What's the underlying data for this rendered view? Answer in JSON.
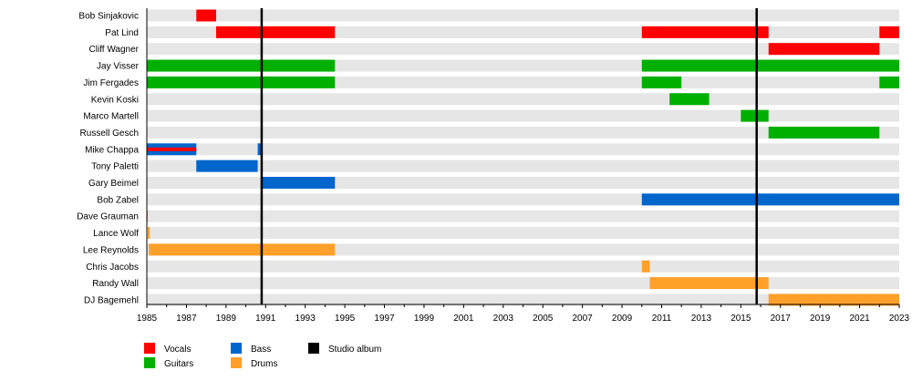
{
  "chart_data": {
    "type": "timeline",
    "xlim": [
      1985,
      2023
    ],
    "xticks": [
      "1985",
      "1987",
      "1989",
      "1991",
      "1993",
      "1995",
      "1997",
      "1999",
      "2001",
      "2003",
      "2005",
      "2007",
      "2009",
      "2011",
      "2013",
      "2015",
      "2017",
      "2019",
      "2021",
      "2023"
    ],
    "roles": {
      "vocals": {
        "label": "Vocals",
        "color": "#ff0000"
      },
      "guitars": {
        "label": "Guitars",
        "color": "#00b000"
      },
      "bass": {
        "label": "Bass",
        "color": "#0066cc"
      },
      "drums": {
        "label": "Drums",
        "color": "#ffa02a"
      },
      "album": {
        "label": "Studio album",
        "color": "#000000"
      }
    },
    "members": [
      {
        "name": "Bob Sinjakovic",
        "bars": [
          {
            "role": "vocals",
            "start": 1987.5,
            "end": 1988.5
          }
        ]
      },
      {
        "name": "Pat Lind",
        "bars": [
          {
            "role": "vocals",
            "start": 1988.5,
            "end": 1994.5
          },
          {
            "role": "vocals",
            "start": 2010.0,
            "end": 2016.4
          },
          {
            "role": "vocals",
            "start": 2022.0,
            "end": 2023
          }
        ]
      },
      {
        "name": "Cliff Wagner",
        "bars": [
          {
            "role": "vocals",
            "start": 2016.4,
            "end": 2022.0
          }
        ]
      },
      {
        "name": "Jay Visser",
        "bars": [
          {
            "role": "guitars",
            "start": 1985,
            "end": 1994.5
          },
          {
            "role": "guitars",
            "start": 2010.0,
            "end": 2023
          }
        ]
      },
      {
        "name": "Jim Fergades",
        "bars": [
          {
            "role": "guitars",
            "start": 1985,
            "end": 1994.5
          },
          {
            "role": "guitars",
            "start": 2010.0,
            "end": 2012.0
          },
          {
            "role": "guitars",
            "start": 2022.0,
            "end": 2023
          }
        ]
      },
      {
        "name": "Kevin Koski",
        "bars": [
          {
            "role": "guitars",
            "start": 2011.4,
            "end": 2013.4
          }
        ]
      },
      {
        "name": "Marco Martell",
        "bars": [
          {
            "role": "guitars",
            "start": 2015.0,
            "end": 2016.4
          }
        ]
      },
      {
        "name": "Russell Gesch",
        "bars": [
          {
            "role": "guitars",
            "start": 2016.4,
            "end": 2022.0
          }
        ]
      },
      {
        "name": "Mike Chappa",
        "bars": [
          {
            "role": "bass",
            "start": 1985,
            "end": 1987.5,
            "stripe": "vocals"
          },
          {
            "role": "bass",
            "start": 1990.6,
            "end": 1990.8
          }
        ]
      },
      {
        "name": "Tony Paletti",
        "bars": [
          {
            "role": "bass",
            "start": 1987.5,
            "end": 1990.6
          }
        ]
      },
      {
        "name": "Gary Beimel",
        "bars": [
          {
            "role": "bass",
            "start": 1990.75,
            "end": 1994.5
          }
        ]
      },
      {
        "name": "Bob Zabel",
        "bars": [
          {
            "role": "bass",
            "start": 2010.0,
            "end": 2023
          }
        ]
      },
      {
        "name": "Dave Grauman",
        "bars": [
          {
            "role": "drums",
            "start": 1985,
            "end": 1985.05
          }
        ]
      },
      {
        "name": "Lance Wolf",
        "bars": [
          {
            "role": "drums",
            "start": 1985.05,
            "end": 1985.15
          }
        ]
      },
      {
        "name": "Lee Reynolds",
        "bars": [
          {
            "role": "drums",
            "start": 1985.1,
            "end": 1994.5
          }
        ]
      },
      {
        "name": "Chris Jacobs",
        "bars": [
          {
            "role": "drums",
            "start": 2010.0,
            "end": 2010.4
          }
        ]
      },
      {
        "name": "Randy Wall",
        "bars": [
          {
            "role": "drums",
            "start": 2010.4,
            "end": 2016.4
          }
        ]
      },
      {
        "name": "DJ Bagemehl",
        "bars": [
          {
            "role": "drums",
            "start": 2016.4,
            "end": 2023
          }
        ]
      }
    ],
    "studio_albums": [
      1990.8,
      2015.8
    ],
    "legend": {
      "placement": "bottom-left",
      "items": [
        "vocals",
        "guitars",
        "bass",
        "drums",
        "album"
      ]
    }
  }
}
